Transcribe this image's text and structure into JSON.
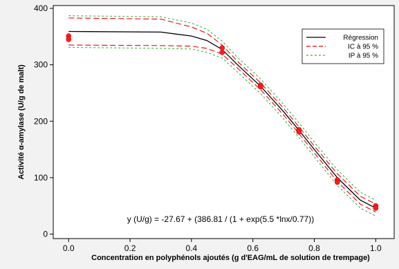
{
  "chart_data": {
    "type": "line",
    "xlabel": "Concentration en polyphénols ajoutés (g d'EAG/mL de solution de trempage)",
    "ylabel": "Activité α-amylase (U/g de malt)",
    "xlim": [
      -0.05,
      1.06
    ],
    "ylim": [
      -8,
      405
    ],
    "x_ticks": [
      "0.0",
      "0.2",
      "0.4",
      "0.6",
      "0.8",
      "1.0"
    ],
    "y_ticks": [
      "0",
      "100",
      "200",
      "300",
      "400"
    ],
    "grid": false,
    "legend_position": "top-right",
    "equation": "y (U/g) = -27.67 + (386.81 / (1 + exp(5.5 *lnx/0.77))",
    "series": [
      {
        "name": "Régression",
        "color": "#000000",
        "style": "solid",
        "x": [
          0.0,
          0.3,
          0.4,
          0.45,
          0.5,
          0.55,
          0.625,
          0.7,
          0.75,
          0.8,
          0.875,
          0.95,
          1.0
        ],
        "y": [
          359,
          358,
          351,
          343,
          327,
          300,
          262,
          217,
          184,
          150,
          100,
          60,
          46
        ]
      },
      {
        "name": "IC à 95 %",
        "color": "#e8000b",
        "style": "dashed",
        "x": [
          0.0,
          0.3,
          0.4,
          0.45,
          0.5,
          0.55,
          0.625,
          0.7,
          0.75,
          0.8,
          0.875,
          0.95,
          1.0
        ],
        "y": [
          383,
          381,
          367,
          356,
          335,
          306,
          268,
          223,
          190,
          156,
          107,
          67,
          53
        ]
      },
      {
        "name": "",
        "color": "#e8000b",
        "style": "dashed",
        "x": [
          0.0,
          0.3,
          0.4,
          0.45,
          0.5,
          0.55,
          0.625,
          0.7,
          0.75,
          0.8,
          0.875,
          0.95,
          1.0
        ],
        "y": [
          335,
          334,
          333,
          329,
          319,
          294,
          256,
          211,
          178,
          144,
          93,
          53,
          39
        ]
      },
      {
        "name": "IP à 95 %",
        "color": "#3cb43c",
        "style": "dashed",
        "x": [
          0.0,
          0.3,
          0.4,
          0.45,
          0.5,
          0.55,
          0.625,
          0.7,
          0.75,
          0.8,
          0.875,
          0.95,
          1.0
        ],
        "y": [
          387,
          385,
          374,
          363,
          342,
          313,
          275,
          230,
          197,
          163,
          114,
          74,
          60
        ]
      },
      {
        "name": "",
        "color": "#3cb43c",
        "style": "dashed",
        "x": [
          0.0,
          0.3,
          0.4,
          0.45,
          0.5,
          0.55,
          0.625,
          0.7,
          0.75,
          0.8,
          0.875,
          0.95,
          1.0
        ],
        "y": [
          331,
          329,
          328,
          322,
          312,
          287,
          249,
          204,
          171,
          137,
          86,
          46,
          32
        ]
      }
    ],
    "points": {
      "color": "#ff1a1a",
      "x": [
        0.0,
        0.0,
        0.5,
        0.5,
        0.625,
        0.625,
        0.75,
        0.75,
        0.875,
        0.875,
        1.0,
        1.0
      ],
      "y": [
        351,
        345,
        330,
        322,
        264,
        261,
        185,
        181,
        96,
        92,
        50,
        46
      ]
    }
  }
}
